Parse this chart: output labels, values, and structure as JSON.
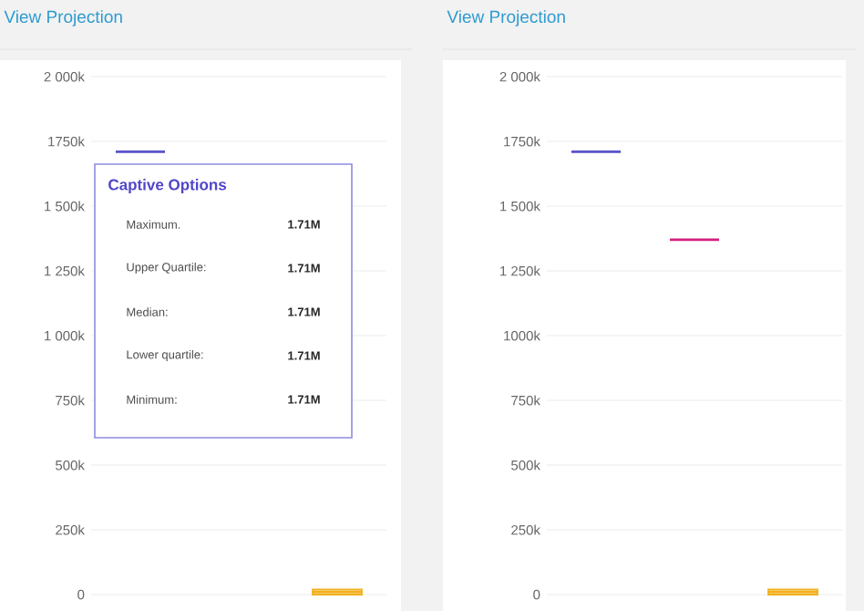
{
  "chart_data": [
    {
      "type": "box",
      "title": "View Projection",
      "categories": [
        null,
        null,
        null
      ],
      "boxes": [
        {
          "low": 1710000,
          "q1": 1710000,
          "median": 1710000,
          "q3": 1710000,
          "high": 1710000
        },
        null,
        {
          "low": 0,
          "q1": 0,
          "median": 10000,
          "q3": 20000,
          "high": 20000
        }
      ],
      "colors": [
        "#5b55c9",
        "#d2207f",
        "#f2b01e"
      ],
      "ylim": [
        0,
        2000000
      ],
      "yticks": [
        0,
        {
          "value": 250000,
          "label": "250k"
        },
        {
          "value": 500000,
          "label": "500k"
        },
        {
          "value": 750000,
          "label": "750k"
        },
        {
          "value": 1000000,
          "label": "1 000k"
        },
        {
          "value": 1250000,
          "label": "1 250k"
        },
        {
          "value": 1500000,
          "label": "1 500k"
        },
        {
          "value": 1750000,
          "label": "1750k"
        },
        {
          "value": 2000000,
          "label": "2 000k"
        }
      ],
      "grid": "y",
      "annotations": [
        "Captive Options",
        "Maximum.",
        "1.71M",
        "Upper Quartile:",
        "1.71M",
        "Median:",
        "1.71M",
        "Lower quartile:",
        "1.71M",
        "Minimum:",
        "1.71M"
      ]
    },
    {
      "type": "box",
      "title": "View Projection",
      "categories": [
        null,
        null,
        null
      ],
      "boxes": [
        {
          "low": 1710000,
          "q1": 1710000,
          "median": 1710000,
          "q3": 1710000,
          "high": 1710000
        },
        {
          "low": 1370000,
          "q1": 1370000,
          "median": 1370000,
          "q3": 1370000,
          "high": 1370000
        },
        {
          "low": 0,
          "q1": 0,
          "median": 10000,
          "q3": 20000,
          "high": 20000
        }
      ],
      "colors": [
        "#5b55c9",
        "#d2207f",
        "#f2b01e"
      ],
      "ylim": [
        0,
        2000000
      ],
      "yticks": [
        0,
        {
          "value": 250000,
          "label": "250k"
        },
        {
          "value": 500000,
          "label": "500k"
        },
        {
          "value": 750000,
          "label": "750k"
        },
        {
          "value": 1000000,
          "label": "1000k"
        },
        {
          "value": 1250000,
          "label": "1 250k"
        },
        {
          "value": 1500000,
          "label": "1 500k"
        },
        {
          "value": 1750000,
          "label": "1750k"
        },
        {
          "value": 2000000,
          "label": "2 000k"
        }
      ],
      "grid": "y"
    }
  ]
}
